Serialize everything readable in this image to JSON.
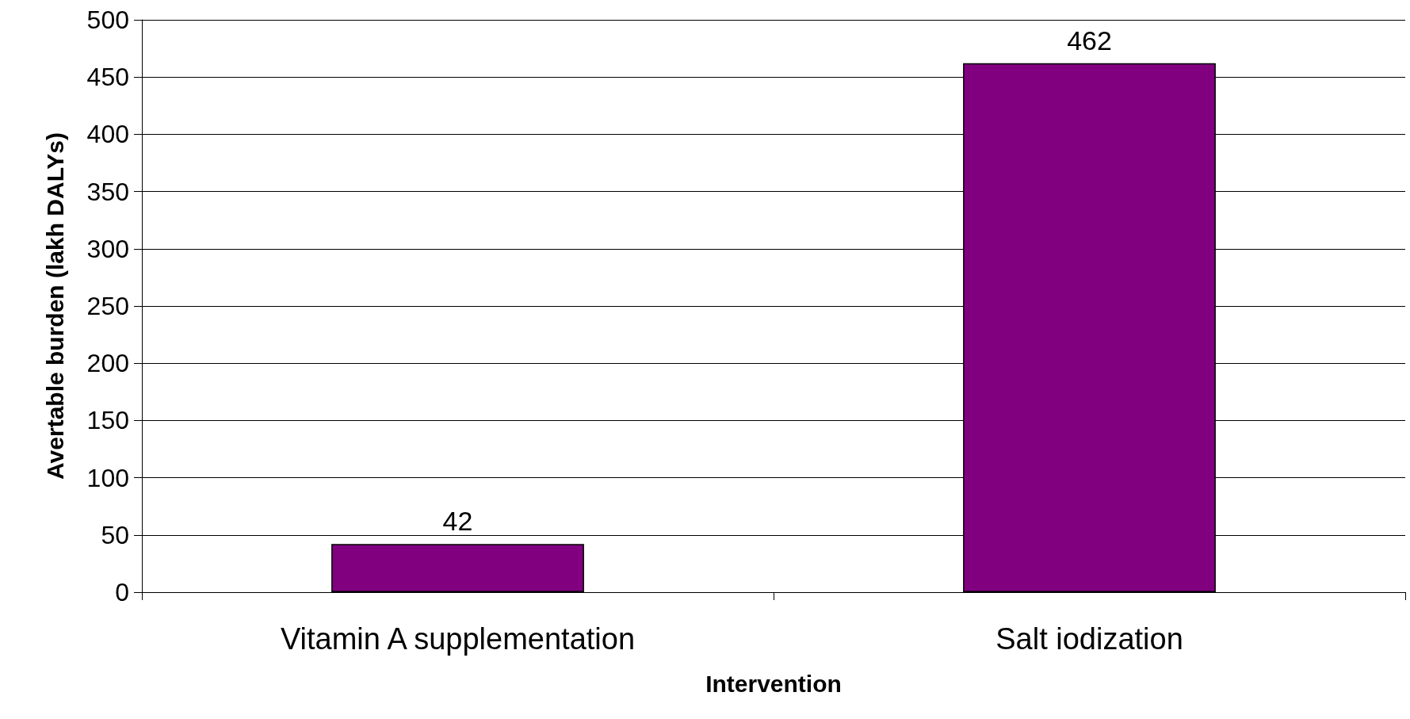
{
  "chart_data": {
    "type": "bar",
    "xlabel": "Intervention",
    "ylabel": "Avertable burden (lakh DALYs)",
    "categories": [
      "Vitamin A supplementation",
      "Salt iodization"
    ],
    "values": [
      42,
      462
    ],
    "color": "#800080",
    "ylim": [
      0,
      500
    ],
    "yticks": [
      0,
      50,
      100,
      150,
      200,
      250,
      300,
      350,
      400,
      450,
      500
    ],
    "grid": "y",
    "data_labels": true
  }
}
